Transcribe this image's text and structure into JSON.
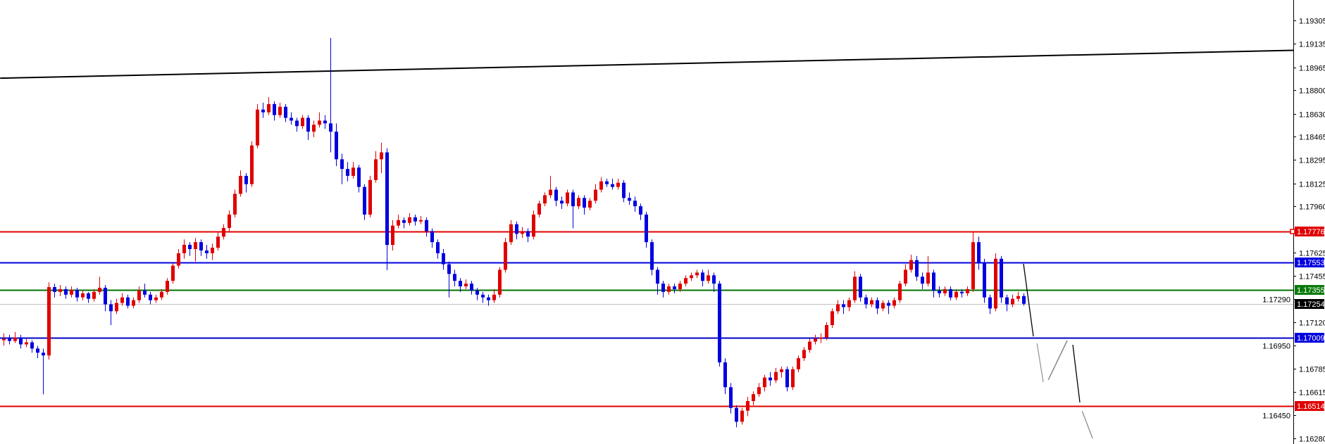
{
  "chart_data": {
    "type": "candlestick",
    "ylim": [
      1.16239,
      1.19453
    ],
    "grid": false,
    "colors": {
      "bull": "#e00000",
      "bear": "#0000e0",
      "background": "#ffffff",
      "axis": "#000000"
    },
    "y_ticks": [
      "1.19305",
      "1.19135",
      "1.18965",
      "1.18800",
      "1.18630",
      "1.18465",
      "1.18295",
      "1.18125",
      "1.17960",
      "1.17625",
      "1.17455",
      "1.17290",
      "1.17120",
      "1.16950",
      "1.16785",
      "1.16615",
      "1.16450",
      "1.16280"
    ],
    "levels": [
      {
        "price": "1.17776",
        "color": "#e00000",
        "label_color": "#e00000",
        "marker": true
      },
      {
        "price": "1.17553",
        "color": "#0000e0",
        "label_color": "#0000e0"
      },
      {
        "price": "1.17355",
        "color": "#007000",
        "label_color": "#0a7a0a"
      },
      {
        "price": "1.17254",
        "color": "#c0c0c0",
        "label_color": "#000000",
        "current": true
      },
      {
        "price": "1.17009",
        "color": "#0000c8",
        "label_color": "#0000e0"
      },
      {
        "price": "1.16514",
        "color": "#e00000",
        "label_color": "#e00000"
      }
    ],
    "trendline": [
      {
        "bar": -0.6,
        "price": 1.18887
      },
      {
        "bar": 228.9,
        "price": 1.19089
      }
    ],
    "projection": [
      {
        "from": {
          "bar": 181,
          "price": 1.17543
        },
        "to": {
          "bar": 182.75,
          "price": 1.17018
        },
        "color": "#000000"
      },
      {
        "from": {
          "bar": 183.4,
          "price": 1.16967
        },
        "to": {
          "bar": 184.5,
          "price": 1.16687
        },
        "color": "#999999"
      },
      {
        "from": {
          "bar": 185.4,
          "price": 1.16703
        },
        "to": {
          "bar": 188.75,
          "price": 1.16988
        },
        "color": "#777777"
      },
      {
        "from": {
          "bar": 189.75,
          "price": 1.16957
        },
        "to": {
          "bar": 191,
          "price": 1.1654
        },
        "color": "#000000"
      },
      {
        "from": {
          "bar": 191.4,
          "price": 1.16478
        },
        "to": {
          "bar": 193.25,
          "price": 1.1628
        },
        "color": "#888888"
      }
    ],
    "ohlc": [
      [
        1.1699,
        1.1704,
        1.1695,
        1.17
      ],
      [
        1.17,
        1.1703,
        1.1696,
        1.16985
      ],
      [
        1.16985,
        1.1705,
        1.1697,
        1.1701
      ],
      [
        1.1701,
        1.1703,
        1.1693,
        1.1696
      ],
      [
        1.1696,
        1.17,
        1.1694,
        1.16975
      ],
      [
        1.16975,
        1.1699,
        1.169,
        1.1693
      ],
      [
        1.1693,
        1.1695,
        1.1686,
        1.169
      ],
      [
        1.169,
        1.1693,
        1.16599,
        1.1688
      ],
      [
        1.1688,
        1.1741,
        1.1685,
        1.17375
      ],
      [
        1.17375,
        1.174,
        1.173,
        1.1734
      ],
      [
        1.1734,
        1.1739,
        1.1731,
        1.1736
      ],
      [
        1.1736,
        1.1738,
        1.1729,
        1.1732
      ],
      [
        1.1732,
        1.1738,
        1.173,
        1.17355
      ],
      [
        1.17355,
        1.1737,
        1.1727,
        1.173
      ],
      [
        1.173,
        1.1735,
        1.1728,
        1.1733
      ],
      [
        1.1733,
        1.1734,
        1.1726,
        1.1729
      ],
      [
        1.1729,
        1.1736,
        1.1727,
        1.1734
      ],
      [
        1.1734,
        1.1745,
        1.1732,
        1.1737
      ],
      [
        1.1737,
        1.1739,
        1.172,
        1.1725
      ],
      [
        1.1725,
        1.1728,
        1.171,
        1.172
      ],
      [
        1.172,
        1.1729,
        1.1718,
        1.1726
      ],
      [
        1.1726,
        1.1733,
        1.1724,
        1.173
      ],
      [
        1.173,
        1.1732,
        1.1722,
        1.1724
      ],
      [
        1.1724,
        1.173,
        1.1722,
        1.1728
      ],
      [
        1.1728,
        1.1738,
        1.1726,
        1.1735
      ],
      [
        1.1735,
        1.174,
        1.173,
        1.1732
      ],
      [
        1.1732,
        1.1734,
        1.1725,
        1.1728
      ],
      [
        1.1728,
        1.1732,
        1.1726,
        1.173
      ],
      [
        1.173,
        1.1736,
        1.1728,
        1.1734
      ],
      [
        1.1734,
        1.1744,
        1.1732,
        1.1742
      ],
      [
        1.1742,
        1.1755,
        1.174,
        1.1753
      ],
      [
        1.1753,
        1.1765,
        1.1751,
        1.1762
      ],
      [
        1.1762,
        1.1772,
        1.1758,
        1.17681
      ],
      [
        1.17681,
        1.177,
        1.176,
        1.1765
      ],
      [
        1.1765,
        1.1773,
        1.1756,
        1.177
      ],
      [
        1.177,
        1.1772,
        1.176,
        1.1764
      ],
      [
        1.1764,
        1.1768,
        1.1758,
        1.1762
      ],
      [
        1.1762,
        1.1769,
        1.1757,
        1.1766
      ],
      [
        1.1766,
        1.1777,
        1.1764,
        1.1774
      ],
      [
        1.1774,
        1.1783,
        1.1772,
        1.17803
      ],
      [
        1.17803,
        1.1793,
        1.1778,
        1.179
      ],
      [
        1.179,
        1.1808,
        1.1788,
        1.1805
      ],
      [
        1.1805,
        1.1822,
        1.1803,
        1.1818
      ],
      [
        1.1818,
        1.182,
        1.1806,
        1.1812
      ],
      [
        1.1812,
        1.1843,
        1.181,
        1.184
      ],
      [
        1.184,
        1.187,
        1.1838,
        1.1866
      ],
      [
        1.1866,
        1.1871,
        1.186,
        1.1864
      ],
      [
        1.1864,
        1.1875,
        1.1862,
        1.187
      ],
      [
        1.187,
        1.1872,
        1.1858,
        1.1862
      ],
      [
        1.1862,
        1.1871,
        1.186,
        1.1868
      ],
      [
        1.1868,
        1.187,
        1.1857,
        1.186
      ],
      [
        1.186,
        1.1864,
        1.1855,
        1.1858
      ],
      [
        1.1858,
        1.186,
        1.185,
        1.1854
      ],
      [
        1.1854,
        1.1862,
        1.1852,
        1.186
      ],
      [
        1.186,
        1.1862,
        1.1844,
        1.185
      ],
      [
        1.185,
        1.1858,
        1.1846,
        1.1855
      ],
      [
        1.1855,
        1.1864,
        1.1853,
        1.1858
      ],
      [
        1.1858,
        1.1862,
        1.1852,
        1.1856
      ],
      [
        1.1856,
        1.19178,
        1.1835,
        1.185
      ],
      [
        1.185,
        1.1856,
        1.1825,
        1.183
      ],
      [
        1.183,
        1.1834,
        1.1812,
        1.1823
      ],
      [
        1.1823,
        1.1828,
        1.1814,
        1.1818
      ],
      [
        1.1818,
        1.1828,
        1.1816,
        1.1824
      ],
      [
        1.1824,
        1.1826,
        1.1806,
        1.181
      ],
      [
        1.181,
        1.1812,
        1.1786,
        1.179
      ],
      [
        1.179,
        1.1818,
        1.1788,
        1.1815
      ],
      [
        1.1815,
        1.1836,
        1.1813,
        1.183
      ],
      [
        1.183,
        1.1842,
        1.182,
        1.1835
      ],
      [
        1.1835,
        1.1838,
        1.17498,
        1.1768
      ],
      [
        1.1768,
        1.1786,
        1.1764,
        1.1782
      ],
      [
        1.1782,
        1.179,
        1.178,
        1.1786
      ],
      [
        1.1786,
        1.1788,
        1.178,
        1.1784
      ],
      [
        1.1784,
        1.1791,
        1.1782,
        1.1788
      ],
      [
        1.1788,
        1.179,
        1.1782,
        1.1785
      ],
      [
        1.1785,
        1.1789,
        1.1783,
        1.1786
      ],
      [
        1.1786,
        1.1788,
        1.1774,
        1.1778
      ],
      [
        1.1778,
        1.178,
        1.1766,
        1.177
      ],
      [
        1.177,
        1.1772,
        1.1758,
        1.1762
      ],
      [
        1.1762,
        1.1765,
        1.175,
        1.1754
      ],
      [
        1.1754,
        1.1756,
        1.173,
        1.1747
      ],
      [
        1.1747,
        1.175,
        1.1738,
        1.1742
      ],
      [
        1.1742,
        1.1744,
        1.1734,
        1.1738
      ],
      [
        1.1738,
        1.1743,
        1.1736,
        1.174
      ],
      [
        1.174,
        1.1742,
        1.1732,
        1.1735
      ],
      [
        1.1735,
        1.1737,
        1.1728,
        1.1732
      ],
      [
        1.1732,
        1.1734,
        1.1726,
        1.173
      ],
      [
        1.173,
        1.1732,
        1.1724,
        1.1728
      ],
      [
        1.1728,
        1.1736,
        1.1726,
        1.1732
      ],
      [
        1.1732,
        1.1752,
        1.173,
        1.175
      ],
      [
        1.175,
        1.1773,
        1.1748,
        1.177
      ],
      [
        1.177,
        1.1786,
        1.1768,
        1.1783
      ],
      [
        1.1783,
        1.1785,
        1.1772,
        1.1776
      ],
      [
        1.1776,
        1.1781,
        1.1773,
        1.1778
      ],
      [
        1.1778,
        1.178,
        1.177,
        1.1774
      ],
      [
        1.1774,
        1.1793,
        1.1772,
        1.179
      ],
      [
        1.179,
        1.18,
        1.1788,
        1.1798
      ],
      [
        1.1798,
        1.1806,
        1.1796,
        1.1804
      ],
      [
        1.1804,
        1.1818,
        1.1802,
        1.1808
      ],
      [
        1.1808,
        1.181,
        1.1796,
        1.18
      ],
      [
        1.18,
        1.1803,
        1.1794,
        1.1798
      ],
      [
        1.1798,
        1.1808,
        1.1796,
        1.1806
      ],
      [
        1.1806,
        1.1808,
        1.178,
        1.1796
      ],
      [
        1.1796,
        1.1804,
        1.1794,
        1.1802
      ],
      [
        1.1802,
        1.1804,
        1.179,
        1.1795
      ],
      [
        1.1795,
        1.1802,
        1.1793,
        1.18
      ],
      [
        1.18,
        1.1812,
        1.1798,
        1.1808
      ],
      [
        1.1808,
        1.1817,
        1.1806,
        1.1814
      ],
      [
        1.1814,
        1.1816,
        1.181,
        1.1812
      ],
      [
        1.1812,
        1.1816,
        1.1808,
        1.181
      ],
      [
        1.181,
        1.1816,
        1.1808,
        1.1813
      ],
      [
        1.1813,
        1.1815,
        1.1799,
        1.1802
      ],
      [
        1.1802,
        1.1806,
        1.1797,
        1.18
      ],
      [
        1.18,
        1.1803,
        1.1792,
        1.1796
      ],
      [
        1.1796,
        1.1798,
        1.1786,
        1.179
      ],
      [
        1.179,
        1.1792,
        1.1766,
        1.177
      ],
      [
        1.177,
        1.1772,
        1.1746,
        1.175
      ],
      [
        1.175,
        1.1752,
        1.1732,
        1.174
      ],
      [
        1.174,
        1.1742,
        1.173,
        1.1734
      ],
      [
        1.1734,
        1.174,
        1.1732,
        1.1738
      ],
      [
        1.1738,
        1.174,
        1.1733,
        1.1736
      ],
      [
        1.1736,
        1.1742,
        1.1734,
        1.174
      ],
      [
        1.174,
        1.1746,
        1.1738,
        1.1744
      ],
      [
        1.1744,
        1.1748,
        1.1742,
        1.1746
      ],
      [
        1.1746,
        1.175,
        1.1744,
        1.1748
      ],
      [
        1.1748,
        1.175,
        1.1738,
        1.1742
      ],
      [
        1.1742,
        1.175,
        1.174,
        1.1746
      ],
      [
        1.1746,
        1.1748,
        1.1734,
        1.174
      ],
      [
        1.174,
        1.1742,
        1.168,
        1.1683
      ],
      [
        1.1683,
        1.1686,
        1.166,
        1.1665
      ],
      [
        1.1665,
        1.1668,
        1.1646,
        1.165
      ],
      [
        1.165,
        1.1652,
        1.1636,
        1.164
      ],
      [
        1.164,
        1.165,
        1.1638,
        1.1648
      ],
      [
        1.1648,
        1.1658,
        1.1644,
        1.1655
      ],
      [
        1.1655,
        1.1662,
        1.1652,
        1.166
      ],
      [
        1.166,
        1.1668,
        1.1658,
        1.1665
      ],
      [
        1.1665,
        1.1674,
        1.1662,
        1.1672
      ],
      [
        1.1672,
        1.1676,
        1.1666,
        1.167
      ],
      [
        1.167,
        1.1679,
        1.1668,
        1.1676
      ],
      [
        1.1676,
        1.168,
        1.1672,
        1.1678
      ],
      [
        1.1678,
        1.168,
        1.1662,
        1.1665
      ],
      [
        1.1665,
        1.168,
        1.1663,
        1.1678
      ],
      [
        1.1678,
        1.1688,
        1.1676,
        1.1686
      ],
      [
        1.1686,
        1.1694,
        1.1684,
        1.1692
      ],
      [
        1.1692,
        1.17,
        1.169,
        1.1698
      ],
      [
        1.1698,
        1.1703,
        1.1696,
        1.17
      ],
      [
        1.17,
        1.1704,
        1.1697,
        1.1701
      ],
      [
        1.1701,
        1.1712,
        1.1699,
        1.171
      ],
      [
        1.171,
        1.1722,
        1.1708,
        1.172
      ],
      [
        1.172,
        1.1728,
        1.1718,
        1.1725
      ],
      [
        1.1725,
        1.1728,
        1.1718,
        1.1723
      ],
      [
        1.1723,
        1.173,
        1.172,
        1.1728
      ],
      [
        1.1728,
        1.1749,
        1.1726,
        1.1745
      ],
      [
        1.1745,
        1.1747,
        1.1727,
        1.173
      ],
      [
        1.173,
        1.1732,
        1.1722,
        1.1725
      ],
      [
        1.1725,
        1.173,
        1.1723,
        1.1728
      ],
      [
        1.1728,
        1.173,
        1.1718,
        1.1722
      ],
      [
        1.1722,
        1.1728,
        1.172,
        1.1726
      ],
      [
        1.1726,
        1.1728,
        1.1718,
        1.1724
      ],
      [
        1.1724,
        1.173,
        1.1722,
        1.1728
      ],
      [
        1.1728,
        1.1742,
        1.1726,
        1.174
      ],
      [
        1.174,
        1.1754,
        1.1738,
        1.175
      ],
      [
        1.175,
        1.1761,
        1.1748,
        1.1757
      ],
      [
        1.1757,
        1.176,
        1.1742,
        1.1745
      ],
      [
        1.1745,
        1.1748,
        1.1736,
        1.174
      ],
      [
        1.174,
        1.176,
        1.1738,
        1.1748
      ],
      [
        1.1748,
        1.175,
        1.173,
        1.1735
      ],
      [
        1.1735,
        1.1738,
        1.173,
        1.1733
      ],
      [
        1.1733,
        1.1738,
        1.1731,
        1.1736
      ],
      [
        1.1736,
        1.1738,
        1.1728,
        1.173
      ],
      [
        1.173,
        1.1736,
        1.1728,
        1.1734
      ],
      [
        1.1734,
        1.1736,
        1.173,
        1.1733
      ],
      [
        1.1733,
        1.1738,
        1.1731,
        1.1736
      ],
      [
        1.1736,
        1.1778,
        1.1734,
        1.177
      ],
      [
        1.177,
        1.1774,
        1.175,
        1.1755
      ],
      [
        1.1755,
        1.1758,
        1.1726,
        1.173
      ],
      [
        1.173,
        1.1732,
        1.1718,
        1.1722
      ],
      [
        1.1722,
        1.1762,
        1.172,
        1.1758
      ],
      [
        1.1758,
        1.176,
        1.1726,
        1.173
      ],
      [
        1.173,
        1.1732,
        1.172,
        1.1725
      ],
      [
        1.1725,
        1.1732,
        1.1723,
        1.1729
      ],
      [
        1.1729,
        1.1734,
        1.1727,
        1.1731
      ],
      [
        1.1731,
        1.1733,
        1.1724,
        1.17254
      ]
    ]
  }
}
